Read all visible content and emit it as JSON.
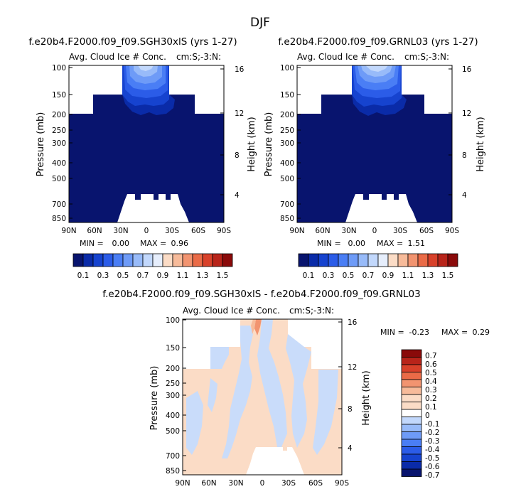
{
  "season": "DJF",
  "colors": {
    "blues": [
      "#08146e",
      "#0a2ba8",
      "#1643cf",
      "#2b5ce8",
      "#4a7ef5",
      "#6e9bf7",
      "#98bbf9",
      "#c2d8fc",
      "#e6eefc"
    ],
    "reds": [
      "#fbdcc6",
      "#f7bb9a",
      "#f29470",
      "#ea6b47",
      "#d8412a",
      "#b8241a",
      "#8a0a0a"
    ],
    "white": "#ffffff"
  },
  "panels": [
    {
      "title": "f.e20b4.F2000.f09_f09.SGH30xlS (yrs 1-27)",
      "left_label": "Avg. Cloud Ice # Conc.",
      "right_label": "cm:S;-3:N:",
      "min_label": "MIN =",
      "min": "0.00",
      "max_label": "MAX =",
      "max": "0.96"
    },
    {
      "title": "f.e20b4.F2000.f09_f09.GRNL03 (yrs 1-27)",
      "left_label": "Avg. Cloud Ice # Conc.",
      "right_label": "cm:S;-3:N:",
      "min_label": "MIN =",
      "min": "0.00",
      "max_label": "MAX =",
      "max": "1.51"
    },
    {
      "title": "f.e20b4.F2000.f09_f09.SGH30xlS - f.e20b4.F2000.f09_f09.GRNL03",
      "left_label": "Avg. Cloud Ice # Conc.",
      "right_label": "cm:S;-3:N:",
      "min_label": "MIN =",
      "min": "-0.23",
      "max_label": "MAX =",
      "max": "0.29"
    }
  ],
  "axes": {
    "ylabel": "Pressure (mb)",
    "y2label": "Height (km)",
    "pressure_ticks": [
      "100",
      "150",
      "200",
      "250",
      "300",
      "400",
      "500",
      "700",
      "850"
    ],
    "height_ticks": [
      "16",
      "12",
      "8",
      "4"
    ],
    "lat_ticks": [
      "90N",
      "60N",
      "30N",
      "0",
      "30S",
      "60S",
      "90S"
    ]
  },
  "chart_data": [
    {
      "type": "heatmap",
      "title": "f.e20b4.F2000.f09_f09.SGH30xlS (yrs 1-27)",
      "x": "latitude 90N to 90S",
      "y": "pressure 100 to 850 mb (log)",
      "value_range": [
        0.0,
        0.96
      ],
      "colorbar_levels": [
        "0.1",
        "0.3",
        "0.5",
        "0.7",
        "0.9",
        "1.1",
        "1.3",
        "1.5"
      ]
    },
    {
      "type": "heatmap",
      "title": "f.e20b4.F2000.f09_f09.GRNL03 (yrs 1-27)",
      "x": "latitude 90N to 90S",
      "y": "pressure 100 to 850 mb (log)",
      "value_range": [
        0.0,
        1.51
      ],
      "colorbar_levels": [
        "0.1",
        "0.3",
        "0.5",
        "0.7",
        "0.9",
        "1.1",
        "1.3",
        "1.5"
      ]
    },
    {
      "type": "heatmap",
      "title": "f.e20b4.F2000.f09_f09.SGH30xlS - f.e20b4.F2000.f09_f09.GRNL03",
      "x": "latitude 90N to 90S",
      "y": "pressure 100 to 850 mb (log)",
      "value_range": [
        -0.23,
        0.29
      ],
      "colorbar_levels": [
        "0.7",
        "0.6",
        "0.5",
        "0.4",
        "0.3",
        "0.2",
        "0.1",
        "0",
        "-0.1",
        "-0.2",
        "-0.3",
        "-0.4",
        "-0.5",
        "-0.6",
        "-0.7"
      ]
    }
  ]
}
